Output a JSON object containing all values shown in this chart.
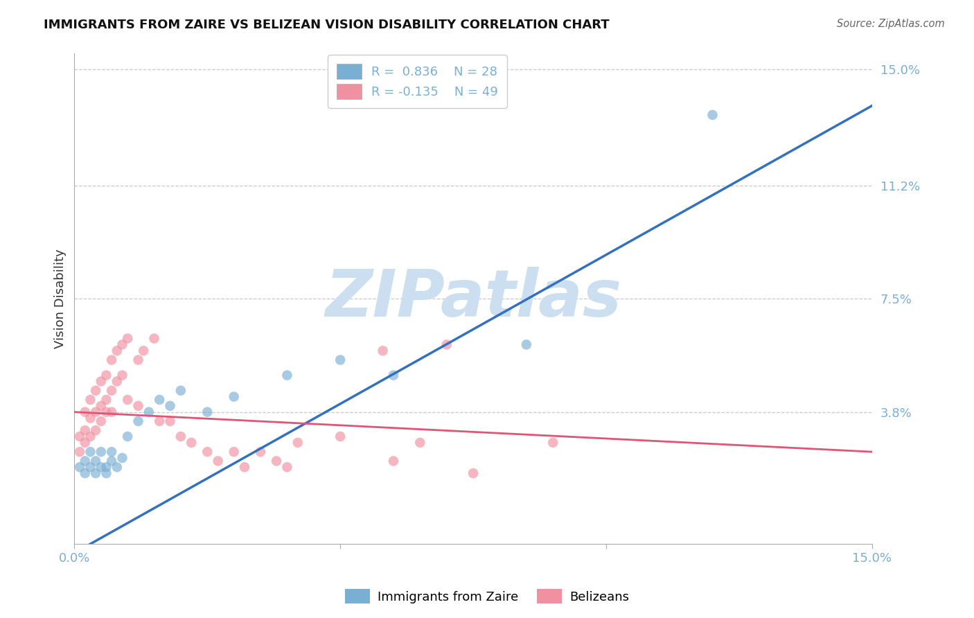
{
  "title": "IMMIGRANTS FROM ZAIRE VS BELIZEAN VISION DISABILITY CORRELATION CHART",
  "source": "Source: ZipAtlas.com",
  "ylabel": "Vision Disability",
  "blue_R": 0.836,
  "blue_N": 28,
  "pink_R": -0.135,
  "pink_N": 49,
  "blue_color": "#7aafd4",
  "pink_color": "#f090a0",
  "blue_line_color": "#3370c0",
  "pink_line_color": "#e05575",
  "watermark": "ZIPatlas",
  "watermark_color": "#ccdff0",
  "x_min": 0.0,
  "x_max": 0.15,
  "y_min": -0.005,
  "y_max": 0.155,
  "y_ticks": [
    0.038,
    0.075,
    0.112,
    0.15
  ],
  "y_tick_labels": [
    "3.8%",
    "7.5%",
    "11.2%",
    "15.0%"
  ],
  "x_ticks": [
    0.0,
    0.05,
    0.1,
    0.15
  ],
  "x_tick_labels": [
    "0.0%",
    "",
    "",
    "15.0%"
  ],
  "blue_trend_x": [
    0.0,
    0.15
  ],
  "blue_trend_y": [
    -0.008,
    0.138
  ],
  "pink_trend_x": [
    0.0,
    0.15
  ],
  "pink_trend_y": [
    0.038,
    0.025
  ],
  "blue_scatter": [
    [
      0.001,
      0.02
    ],
    [
      0.002,
      0.018
    ],
    [
      0.002,
      0.022
    ],
    [
      0.003,
      0.02
    ],
    [
      0.003,
      0.025
    ],
    [
      0.004,
      0.018
    ],
    [
      0.004,
      0.022
    ],
    [
      0.005,
      0.02
    ],
    [
      0.005,
      0.025
    ],
    [
      0.006,
      0.02
    ],
    [
      0.006,
      0.018
    ],
    [
      0.007,
      0.022
    ],
    [
      0.007,
      0.025
    ],
    [
      0.008,
      0.02
    ],
    [
      0.009,
      0.023
    ],
    [
      0.01,
      0.03
    ],
    [
      0.012,
      0.035
    ],
    [
      0.014,
      0.038
    ],
    [
      0.016,
      0.042
    ],
    [
      0.018,
      0.04
    ],
    [
      0.02,
      0.045
    ],
    [
      0.025,
      0.038
    ],
    [
      0.03,
      0.043
    ],
    [
      0.04,
      0.05
    ],
    [
      0.05,
      0.055
    ],
    [
      0.06,
      0.05
    ],
    [
      0.085,
      0.06
    ],
    [
      0.12,
      0.135
    ]
  ],
  "pink_scatter": [
    [
      0.001,
      0.03
    ],
    [
      0.001,
      0.025
    ],
    [
      0.002,
      0.038
    ],
    [
      0.002,
      0.032
    ],
    [
      0.002,
      0.028
    ],
    [
      0.003,
      0.042
    ],
    [
      0.003,
      0.036
    ],
    [
      0.003,
      0.03
    ],
    [
      0.004,
      0.045
    ],
    [
      0.004,
      0.038
    ],
    [
      0.004,
      0.032
    ],
    [
      0.005,
      0.048
    ],
    [
      0.005,
      0.04
    ],
    [
      0.005,
      0.035
    ],
    [
      0.006,
      0.05
    ],
    [
      0.006,
      0.042
    ],
    [
      0.006,
      0.038
    ],
    [
      0.007,
      0.055
    ],
    [
      0.007,
      0.045
    ],
    [
      0.007,
      0.038
    ],
    [
      0.008,
      0.058
    ],
    [
      0.008,
      0.048
    ],
    [
      0.009,
      0.06
    ],
    [
      0.009,
      0.05
    ],
    [
      0.01,
      0.062
    ],
    [
      0.01,
      0.042
    ],
    [
      0.012,
      0.055
    ],
    [
      0.012,
      0.04
    ],
    [
      0.013,
      0.058
    ],
    [
      0.015,
      0.062
    ],
    [
      0.016,
      0.035
    ],
    [
      0.018,
      0.035
    ],
    [
      0.02,
      0.03
    ],
    [
      0.022,
      0.028
    ],
    [
      0.025,
      0.025
    ],
    [
      0.027,
      0.022
    ],
    [
      0.03,
      0.025
    ],
    [
      0.032,
      0.02
    ],
    [
      0.035,
      0.025
    ],
    [
      0.038,
      0.022
    ],
    [
      0.04,
      0.02
    ],
    [
      0.042,
      0.028
    ],
    [
      0.05,
      0.03
    ],
    [
      0.058,
      0.058
    ],
    [
      0.06,
      0.022
    ],
    [
      0.065,
      0.028
    ],
    [
      0.07,
      0.06
    ],
    [
      0.075,
      0.018
    ],
    [
      0.09,
      0.028
    ]
  ]
}
